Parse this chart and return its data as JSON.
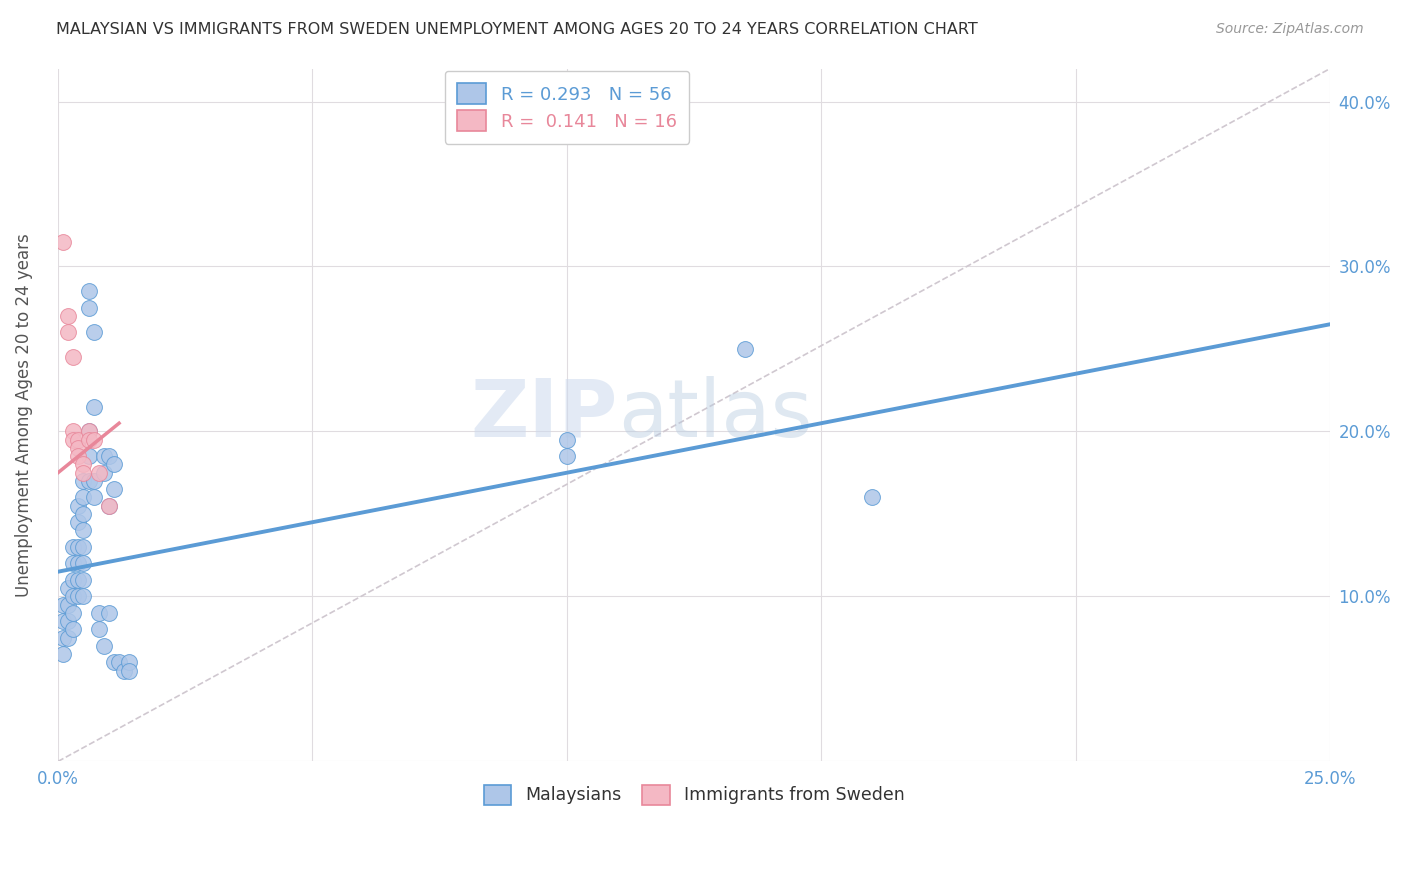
{
  "title": "MALAYSIAN VS IMMIGRANTS FROM SWEDEN UNEMPLOYMENT AMONG AGES 20 TO 24 YEARS CORRELATION CHART",
  "source": "Source: ZipAtlas.com",
  "ylabel": "Unemployment Among Ages 20 to 24 years",
  "xlim": [
    0.0,
    0.25
  ],
  "ylim": [
    0.0,
    0.42
  ],
  "xticks": [
    0.0,
    0.05,
    0.1,
    0.15,
    0.2,
    0.25
  ],
  "xtick_labels_show": [
    "0.0%",
    "",
    "",
    "",
    "",
    "25.0%"
  ],
  "yticks": [
    0.0,
    0.1,
    0.2,
    0.3,
    0.4
  ],
  "ytick_labels": [
    "",
    "10.0%",
    "20.0%",
    "30.0%",
    "40.0%"
  ],
  "legend_entries": [
    {
      "label": "Malaysians"
    },
    {
      "label": "Immigrants from Sweden"
    }
  ],
  "R_blue": 0.293,
  "N_blue": 56,
  "R_pink": 0.141,
  "N_pink": 16,
  "blue_scatter": [
    [
      0.001,
      0.095
    ],
    [
      0.001,
      0.085
    ],
    [
      0.001,
      0.075
    ],
    [
      0.001,
      0.065
    ],
    [
      0.002,
      0.105
    ],
    [
      0.002,
      0.095
    ],
    [
      0.002,
      0.085
    ],
    [
      0.002,
      0.075
    ],
    [
      0.003,
      0.13
    ],
    [
      0.003,
      0.12
    ],
    [
      0.003,
      0.11
    ],
    [
      0.003,
      0.1
    ],
    [
      0.003,
      0.09
    ],
    [
      0.003,
      0.08
    ],
    [
      0.004,
      0.155
    ],
    [
      0.004,
      0.145
    ],
    [
      0.004,
      0.13
    ],
    [
      0.004,
      0.12
    ],
    [
      0.004,
      0.11
    ],
    [
      0.004,
      0.1
    ],
    [
      0.005,
      0.17
    ],
    [
      0.005,
      0.16
    ],
    [
      0.005,
      0.15
    ],
    [
      0.005,
      0.14
    ],
    [
      0.005,
      0.13
    ],
    [
      0.005,
      0.12
    ],
    [
      0.005,
      0.11
    ],
    [
      0.005,
      0.1
    ],
    [
      0.006,
      0.285
    ],
    [
      0.006,
      0.275
    ],
    [
      0.006,
      0.2
    ],
    [
      0.006,
      0.185
    ],
    [
      0.006,
      0.17
    ],
    [
      0.007,
      0.26
    ],
    [
      0.007,
      0.215
    ],
    [
      0.007,
      0.17
    ],
    [
      0.007,
      0.16
    ],
    [
      0.008,
      0.09
    ],
    [
      0.008,
      0.08
    ],
    [
      0.009,
      0.185
    ],
    [
      0.009,
      0.175
    ],
    [
      0.009,
      0.07
    ],
    [
      0.01,
      0.185
    ],
    [
      0.01,
      0.155
    ],
    [
      0.01,
      0.09
    ],
    [
      0.011,
      0.18
    ],
    [
      0.011,
      0.165
    ],
    [
      0.011,
      0.06
    ],
    [
      0.012,
      0.06
    ],
    [
      0.013,
      0.055
    ],
    [
      0.014,
      0.06
    ],
    [
      0.014,
      0.055
    ],
    [
      0.1,
      0.195
    ],
    [
      0.1,
      0.185
    ],
    [
      0.135,
      0.25
    ],
    [
      0.16,
      0.16
    ]
  ],
  "pink_scatter": [
    [
      0.001,
      0.315
    ],
    [
      0.002,
      0.27
    ],
    [
      0.002,
      0.26
    ],
    [
      0.003,
      0.245
    ],
    [
      0.003,
      0.2
    ],
    [
      0.003,
      0.195
    ],
    [
      0.004,
      0.195
    ],
    [
      0.004,
      0.19
    ],
    [
      0.004,
      0.185
    ],
    [
      0.005,
      0.18
    ],
    [
      0.005,
      0.175
    ],
    [
      0.006,
      0.2
    ],
    [
      0.006,
      0.195
    ],
    [
      0.007,
      0.195
    ],
    [
      0.008,
      0.175
    ],
    [
      0.01,
      0.155
    ]
  ],
  "blue_line_x": [
    0.0,
    0.25
  ],
  "blue_line_y": [
    0.115,
    0.265
  ],
  "pink_line_x": [
    0.0,
    0.012
  ],
  "pink_line_y": [
    0.175,
    0.205
  ],
  "dashed_line_x": [
    0.0,
    0.25
  ],
  "dashed_line_y": [
    0.0,
    0.42
  ],
  "watermark_zip": "ZIP",
  "watermark_atlas": "atlas",
  "blue_color": "#5b9bd5",
  "blue_scatter_color": "#aec6e8",
  "pink_color": "#e8879a",
  "pink_scatter_color": "#f4b8c4",
  "dashed_color": "#d0c8d0",
  "grid_color": "#e0dce0",
  "axis_color": "#5b9bd5",
  "title_color": "#333333",
  "source_color": "#999999",
  "ylabel_color": "#555555"
}
